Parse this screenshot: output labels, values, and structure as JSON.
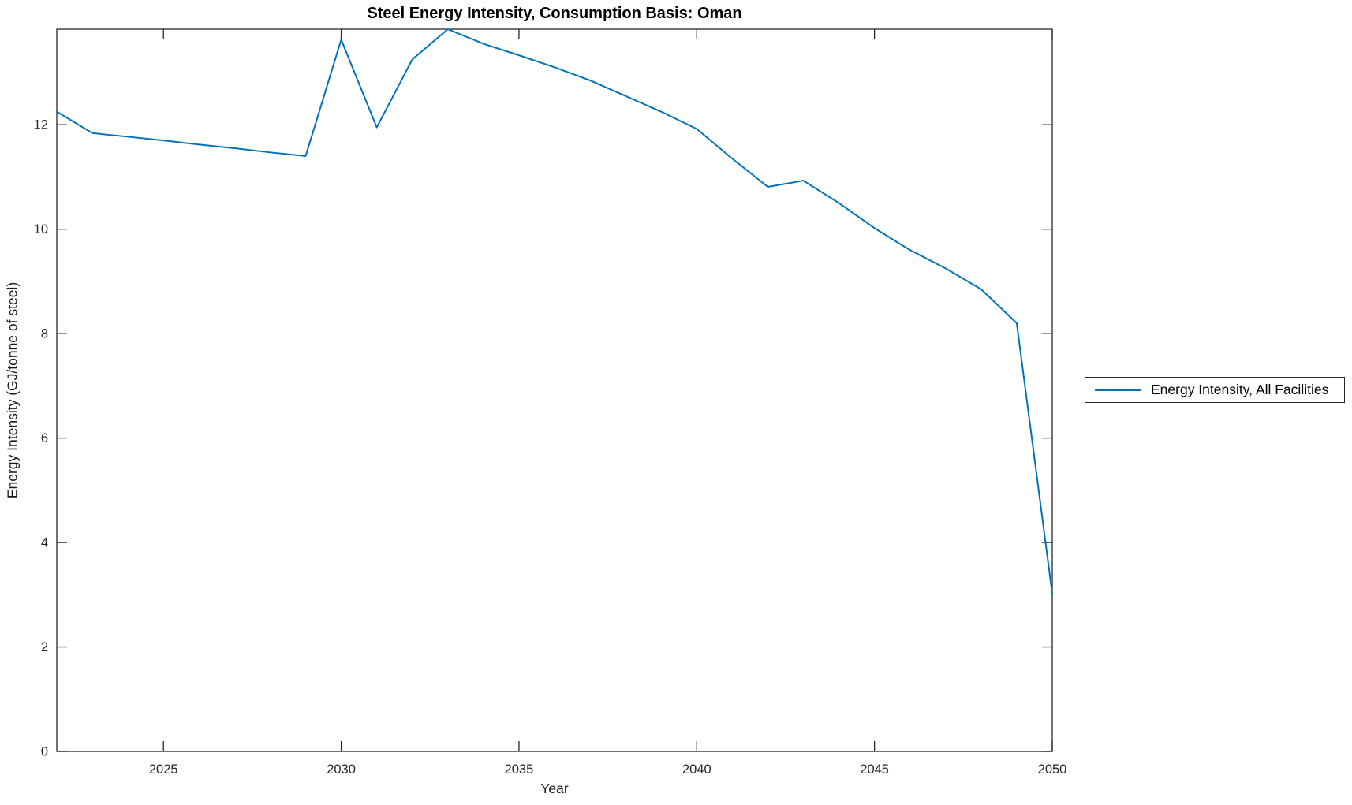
{
  "figure": {
    "background": "#ffffff"
  },
  "chart_data": {
    "type": "line",
    "title": "Steel Energy Intensity, Consumption Basis: Oman",
    "xlabel": "Year",
    "ylabel": "Energy Intensity (GJ/tonne of steel)",
    "xlim": [
      2022,
      2050
    ],
    "ylim": [
      0,
      13.83
    ],
    "x_ticks": [
      2025,
      2030,
      2035,
      2040,
      2045,
      2050
    ],
    "y_ticks": [
      0,
      2,
      4,
      6,
      8,
      10,
      12
    ],
    "grid": false,
    "axis_color": "#262626",
    "tick_label_color": "#262626",
    "legend": {
      "position": "right-outside",
      "entries": [
        {
          "label": "Energy Intensity, All Facilities",
          "color": "#0072BD"
        }
      ]
    },
    "series": [
      {
        "name": "Energy Intensity, All Facilities",
        "color": "#0072BD",
        "x": [
          2022,
          2023,
          2024,
          2025,
          2026,
          2027,
          2028,
          2029,
          2030,
          2031,
          2032,
          2033,
          2034,
          2035,
          2036,
          2037,
          2038,
          2039,
          2040,
          2041,
          2042,
          2043,
          2044,
          2045,
          2046,
          2047,
          2048,
          2049,
          2050
        ],
        "values": [
          12.25,
          11.84,
          11.77,
          11.7,
          11.62,
          11.55,
          11.47,
          11.4,
          13.63,
          11.95,
          13.25,
          13.83,
          13.55,
          13.33,
          13.1,
          12.85,
          12.55,
          12.25,
          11.92,
          11.35,
          10.81,
          10.93,
          10.5,
          10.02,
          9.6,
          9.25,
          8.85,
          8.2,
          3.02
        ]
      }
    ]
  }
}
